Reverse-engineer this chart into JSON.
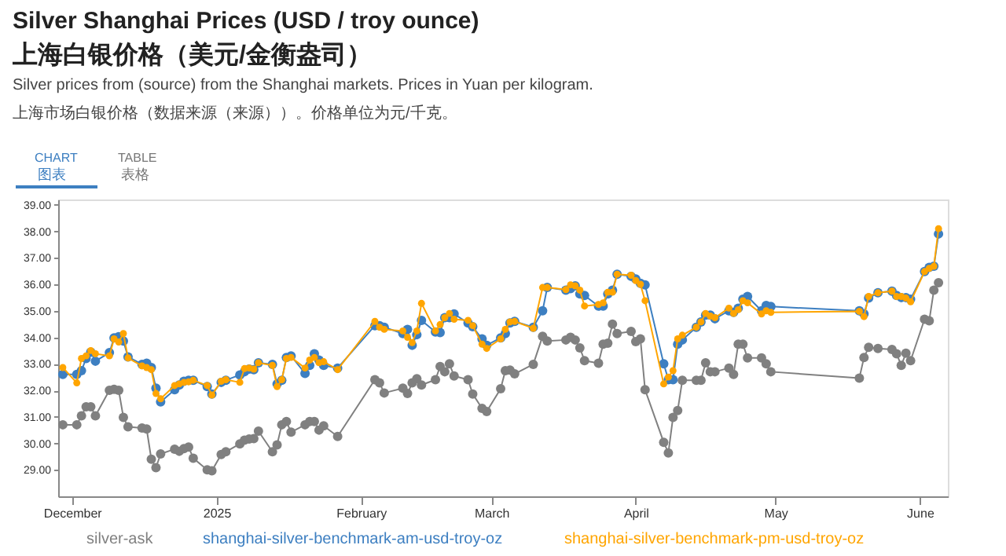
{
  "chart_data": {
    "type": "line",
    "title": "Silver Shanghai Prices (USD / troy ounce)\n上海白银价格（美元/金衡盎司）",
    "subtitle": "Silver prices from (source) from the Shanghai markets. Prices in Yuan per kilogram.\n上海市场白银价格（数据来源（来源））。价格单位为元/千克。",
    "annotations": [
      "CHART",
      "图表",
      "TABLE",
      "表格"
    ],
    "xlim": [
      "2024-11-28",
      "2025-06-07"
    ],
    "xticks": [
      {
        "value": "2024-12-01",
        "label": "December"
      },
      {
        "value": "2025-01-01",
        "label": "2025"
      },
      {
        "value": "2025-02-01",
        "label": "February"
      },
      {
        "value": "2025-03-01",
        "label": "March"
      },
      {
        "value": "2025-04-01",
        "label": "April"
      },
      {
        "value": "2025-05-01",
        "label": "May"
      },
      {
        "value": "2025-06-01",
        "label": "June"
      }
    ],
    "ylim": [
      28,
      39.2
    ],
    "yticks": [
      {
        "value": 29,
        "label": "29.00"
      },
      {
        "value": 30,
        "label": "30.00"
      },
      {
        "value": 31,
        "label": "31.00"
      },
      {
        "value": 32,
        "label": "32.00"
      },
      {
        "value": 33,
        "label": "33.00"
      },
      {
        "value": 34,
        "label": "34.00"
      },
      {
        "value": 35,
        "label": "35.00"
      },
      {
        "value": 36,
        "label": "36.00"
      },
      {
        "value": 37,
        "label": "37.00"
      },
      {
        "value": 38,
        "label": "38.00"
      },
      {
        "value": 39,
        "label": "39.00"
      }
    ],
    "x": [
      "2024-11-29",
      "2024-12-02",
      "2024-12-03",
      "2024-12-04",
      "2024-12-05",
      "2024-12-06",
      "2024-12-09",
      "2024-12-10",
      "2024-12-11",
      "2024-12-12",
      "2024-12-13",
      "2024-12-16",
      "2024-12-17",
      "2024-12-18",
      "2024-12-19",
      "2024-12-20",
      "2024-12-23",
      "2024-12-24",
      "2024-12-25",
      "2024-12-26",
      "2024-12-27",
      "2024-12-30",
      "2024-12-31",
      "2025-01-02",
      "2025-01-03",
      "2025-01-06",
      "2025-01-07",
      "2025-01-08",
      "2025-01-09",
      "2025-01-10",
      "2025-01-13",
      "2025-01-14",
      "2025-01-15",
      "2025-01-16",
      "2025-01-17",
      "2025-01-20",
      "2025-01-21",
      "2025-01-22",
      "2025-01-23",
      "2025-01-24",
      "2025-01-27",
      "2025-02-04",
      "2025-02-05",
      "2025-02-06",
      "2025-02-10",
      "2025-02-11",
      "2025-02-12",
      "2025-02-13",
      "2025-02-14",
      "2025-02-17",
      "2025-02-18",
      "2025-02-19",
      "2025-02-20",
      "2025-02-21",
      "2025-02-24",
      "2025-02-25",
      "2025-02-27",
      "2025-02-28",
      "2025-03-03",
      "2025-03-04",
      "2025-03-05",
      "2025-03-06",
      "2025-03-10",
      "2025-03-12",
      "2025-03-13",
      "2025-03-17",
      "2025-03-18",
      "2025-03-19",
      "2025-03-20",
      "2025-03-21",
      "2025-03-24",
      "2025-03-25",
      "2025-03-26",
      "2025-03-27",
      "2025-03-28",
      "2025-03-31",
      "2025-04-01",
      "2025-04-02",
      "2025-04-03",
      "2025-04-07",
      "2025-04-08",
      "2025-04-09",
      "2025-04-10",
      "2025-04-11",
      "2025-04-14",
      "2025-04-15",
      "2025-04-16",
      "2025-04-17",
      "2025-04-18",
      "2025-04-21",
      "2025-04-22",
      "2025-04-23",
      "2025-04-24",
      "2025-04-25",
      "2025-04-28",
      "2025-04-29",
      "2025-04-30",
      "2025-05-19",
      "2025-05-20",
      "2025-05-21",
      "2025-05-23",
      "2025-05-26",
      "2025-05-27",
      "2025-05-28",
      "2025-05-29",
      "2025-05-30",
      "2025-06-02",
      "2025-06-03",
      "2025-06-04",
      "2025-06-05"
    ],
    "series": [
      {
        "name": "silver-ask",
        "color": "#808080",
        "values": [
          30.7,
          30.7,
          31.04,
          31.38,
          31.38,
          31.04,
          32.0,
          32.04,
          32.0,
          30.98,
          30.62,
          30.58,
          30.54,
          29.4,
          29.08,
          29.6,
          29.78,
          29.7,
          29.8,
          29.86,
          29.44,
          29.0,
          28.96,
          29.58,
          29.68,
          29.98,
          30.12,
          30.16,
          30.18,
          30.46,
          29.68,
          29.94,
          30.7,
          30.82,
          30.42,
          30.7,
          30.82,
          30.82,
          30.5,
          30.66,
          30.26,
          32.4,
          32.28,
          31.9,
          32.08,
          31.88,
          32.28,
          32.44,
          32.2,
          32.4,
          32.9,
          32.7,
          33.0,
          32.54,
          32.4,
          31.86,
          31.32,
          31.2,
          32.06,
          32.74,
          32.76,
          32.62,
          32.98,
          34.04,
          33.86,
          33.9,
          34.0,
          33.9,
          33.6,
          33.12,
          33.02,
          33.74,
          33.78,
          34.5,
          34.14,
          34.22,
          33.84,
          33.94,
          32.02,
          30.04,
          29.64,
          30.98,
          31.24,
          32.38,
          32.38,
          32.38,
          33.04,
          32.7,
          32.7,
          32.84,
          32.6,
          33.74,
          33.74,
          33.22,
          33.22,
          33.0,
          32.7,
          32.46,
          33.24,
          33.62,
          33.58,
          33.54,
          33.38,
          32.94,
          33.4,
          33.12,
          34.68,
          34.62,
          35.78,
          36.06
        ]
      },
      {
        "name": "shanghai-silver-benchmark-am-usd-troy-oz",
        "color": "#3d7fc1",
        "values": [
          32.6,
          32.6,
          32.74,
          33.2,
          33.44,
          33.1,
          33.42,
          33.98,
          34.02,
          33.86,
          33.26,
          32.98,
          33.02,
          32.86,
          32.08,
          31.56,
          32.02,
          32.2,
          32.34,
          32.38,
          32.38,
          32.14,
          31.86,
          32.3,
          32.38,
          32.58,
          32.7,
          32.8,
          32.78,
          33.04,
          32.98,
          32.24,
          32.38,
          33.24,
          33.3,
          32.64,
          32.94,
          33.38,
          33.14,
          32.94,
          32.84,
          34.44,
          34.44,
          34.38,
          34.14,
          34.3,
          33.7,
          34.1,
          34.64,
          34.2,
          34.18,
          34.74,
          34.74,
          34.88,
          34.54,
          34.4,
          33.94,
          33.7,
          33.98,
          34.14,
          34.54,
          34.6,
          34.38,
          35.0,
          35.88,
          35.78,
          35.84,
          35.94,
          35.64,
          35.58,
          35.18,
          35.18,
          35.64,
          35.78,
          36.38,
          36.3,
          36.2,
          36.04,
          35.98,
          33.0,
          32.4,
          32.4,
          33.74,
          33.9,
          34.38,
          34.58,
          34.84,
          34.84,
          34.7,
          35.0,
          34.94,
          35.1,
          35.44,
          35.54,
          35.0,
          35.2,
          35.16,
          35.0,
          34.88,
          35.48,
          35.68,
          35.74,
          35.58,
          35.5,
          35.5,
          35.44,
          36.48,
          36.64,
          36.68,
          37.9
        ]
      },
      {
        "name": "shanghai-silver-benchmark-pm-usd-troy-oz",
        "color": "#ffa500",
        "values": [
          32.86,
          32.28,
          33.2,
          33.3,
          33.5,
          33.38,
          33.3,
          33.94,
          33.82,
          34.14,
          33.22,
          32.92,
          32.86,
          32.78,
          31.88,
          31.68,
          32.18,
          32.24,
          32.3,
          32.32,
          32.38,
          32.18,
          31.82,
          32.34,
          32.4,
          32.3,
          32.82,
          32.84,
          32.8,
          33.04,
          32.94,
          32.14,
          32.4,
          33.2,
          33.24,
          32.84,
          33.14,
          33.24,
          33.04,
          33.08,
          32.78,
          34.6,
          34.38,
          34.3,
          34.24,
          34.0,
          33.8,
          34.24,
          35.28,
          34.24,
          34.48,
          34.74,
          34.9,
          34.68,
          34.64,
          34.44,
          33.74,
          33.58,
          33.94,
          34.3,
          34.58,
          34.6,
          34.34,
          35.88,
          35.88,
          35.8,
          35.98,
          35.94,
          35.78,
          35.18,
          35.24,
          35.3,
          35.7,
          35.7,
          36.38,
          36.34,
          36.14,
          36.0,
          35.38,
          32.24,
          32.5,
          32.74,
          33.94,
          34.08,
          34.38,
          34.58,
          34.9,
          34.8,
          34.74,
          35.1,
          34.9,
          35.04,
          35.38,
          35.3,
          34.88,
          35.0,
          34.94,
          34.98,
          34.78,
          35.54,
          35.68,
          35.74,
          35.54,
          35.54,
          35.48,
          35.34,
          36.48,
          36.6,
          36.68,
          38.1
        ]
      }
    ],
    "marker": "circle",
    "line_style": "solid",
    "legend": "bottom",
    "grid": false
  }
}
